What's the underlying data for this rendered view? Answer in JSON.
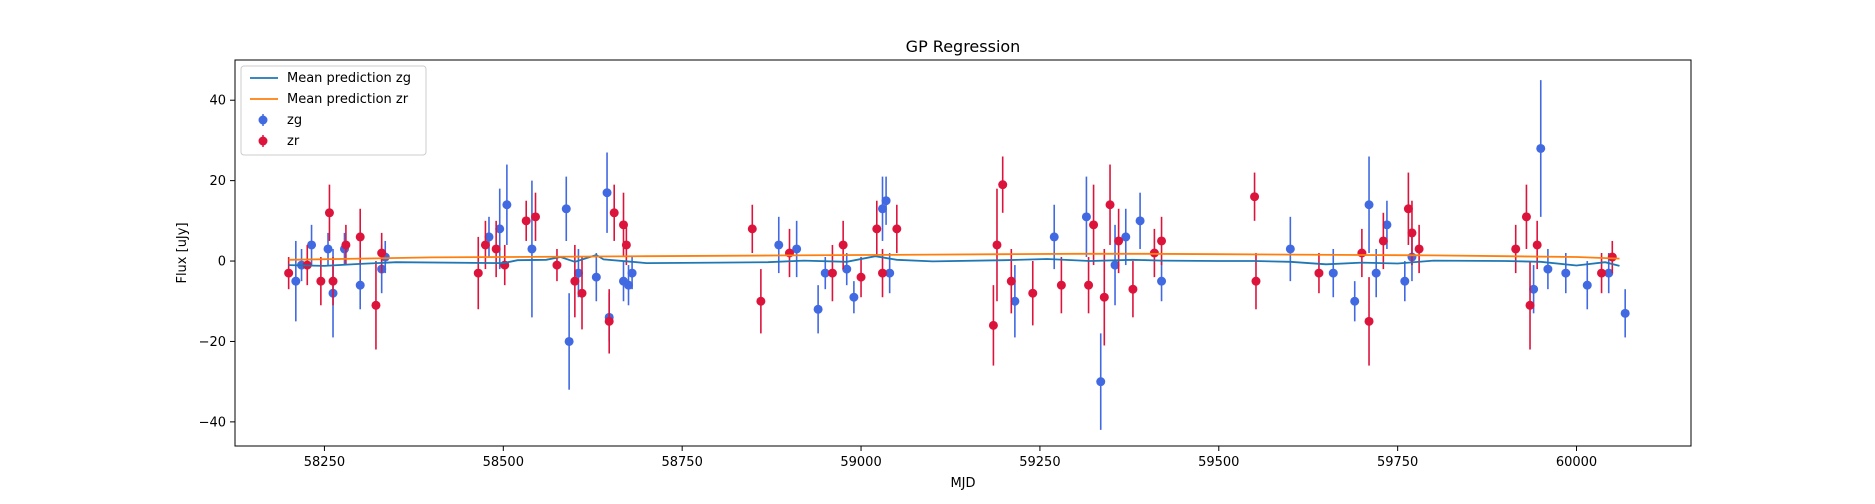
{
  "chart_data": {
    "type": "scatter",
    "title": "GP Regression",
    "xlabel": "MJD",
    "ylabel": "Flux [uJy]",
    "xlim": [
      58125,
      60160
    ],
    "ylim": [
      -46,
      50
    ],
    "x_ticks": [
      58250,
      58500,
      58750,
      59000,
      59250,
      59500,
      59750,
      60000
    ],
    "y_ticks": [
      -40,
      -20,
      0,
      20,
      40
    ],
    "grid": false,
    "legend": "top-left",
    "series": [
      {
        "name": "Mean prediction zg",
        "kind": "line",
        "color": "#1f77b4",
        "points": [
          [
            58200,
            -1
          ],
          [
            58250,
            -1.2
          ],
          [
            58300,
            -0.7
          ],
          [
            58350,
            -0.3
          ],
          [
            58500,
            -0.5
          ],
          [
            58520,
            0.2
          ],
          [
            58560,
            0.3
          ],
          [
            58580,
            1.0
          ],
          [
            58600,
            -0.2
          ],
          [
            58630,
            1.5
          ],
          [
            58640,
            0.4
          ],
          [
            58680,
            -0.2
          ],
          [
            58700,
            -0.5
          ],
          [
            58800,
            -0.4
          ],
          [
            58870,
            -0.3
          ],
          [
            58920,
            0.1
          ],
          [
            58980,
            -0.2
          ],
          [
            59020,
            1.2
          ],
          [
            59050,
            0.3
          ],
          [
            59100,
            -0.1
          ],
          [
            59200,
            0.2
          ],
          [
            59260,
            0.5
          ],
          [
            59320,
            0
          ],
          [
            59380,
            0.3
          ],
          [
            59420,
            0.1
          ],
          [
            59500,
            0
          ],
          [
            59550,
            0
          ],
          [
            59600,
            -0.2
          ],
          [
            59650,
            -0.8
          ],
          [
            59700,
            -0.4
          ],
          [
            59750,
            -0.6
          ],
          [
            59800,
            0.1
          ],
          [
            59900,
            0
          ],
          [
            59950,
            -0.2
          ],
          [
            60000,
            -1.1
          ],
          [
            60040,
            -0.3
          ],
          [
            60060,
            -1.2
          ]
        ]
      },
      {
        "name": "Mean prediction zr",
        "kind": "line",
        "color": "#ff7f0e",
        "points": [
          [
            58200,
            0.3
          ],
          [
            58300,
            0.6
          ],
          [
            58400,
            0.9
          ],
          [
            58500,
            1.0
          ],
          [
            58600,
            1.1
          ],
          [
            58700,
            1.2
          ],
          [
            58800,
            1.3
          ],
          [
            58900,
            1.4
          ],
          [
            59000,
            1.5
          ],
          [
            59100,
            1.6
          ],
          [
            59200,
            1.7
          ],
          [
            59300,
            1.8
          ],
          [
            59400,
            1.8
          ],
          [
            59500,
            1.7
          ],
          [
            59600,
            1.6
          ],
          [
            59700,
            1.5
          ],
          [
            59800,
            1.4
          ],
          [
            59900,
            1.2
          ],
          [
            60000,
            1.0
          ],
          [
            60060,
            0.6
          ]
        ]
      },
      {
        "name": "zg",
        "kind": "errorbar",
        "color": "#4169e1",
        "points": [
          [
            58210,
            -5,
            10
          ],
          [
            58218,
            -1,
            4
          ],
          [
            58232,
            4,
            5
          ],
          [
            58255,
            3,
            4
          ],
          [
            58262,
            -8,
            11
          ],
          [
            58278,
            3,
            4
          ],
          [
            58300,
            -6,
            6
          ],
          [
            58330,
            -2,
            6
          ],
          [
            58335,
            1,
            4
          ],
          [
            58480,
            6,
            5
          ],
          [
            58495,
            8,
            10
          ],
          [
            58505,
            14,
            10
          ],
          [
            58540,
            3,
            17
          ],
          [
            58588,
            13,
            8
          ],
          [
            58592,
            -20,
            12
          ],
          [
            58605,
            -3,
            6
          ],
          [
            58630,
            -4,
            6
          ],
          [
            58645,
            17,
            10
          ],
          [
            58648,
            -14,
            6
          ],
          [
            58668,
            -5,
            5
          ],
          [
            58675,
            -6,
            5
          ],
          [
            58680,
            -3,
            4
          ],
          [
            58885,
            4,
            7
          ],
          [
            58910,
            3,
            7
          ],
          [
            58940,
            -12,
            6
          ],
          [
            58950,
            -3,
            4
          ],
          [
            58980,
            -2,
            4
          ],
          [
            58990,
            -9,
            4
          ],
          [
            59030,
            13,
            8
          ],
          [
            59035,
            15,
            6
          ],
          [
            59040,
            -3,
            5
          ],
          [
            59215,
            -10,
            9
          ],
          [
            59270,
            6,
            8
          ],
          [
            59315,
            11,
            10
          ],
          [
            59335,
            -30,
            12
          ],
          [
            59355,
            -1,
            10
          ],
          [
            59370,
            6,
            7
          ],
          [
            59390,
            10,
            7
          ],
          [
            59420,
            -5,
            5
          ],
          [
            59600,
            3,
            8
          ],
          [
            59660,
            -3,
            6
          ],
          [
            59690,
            -10,
            5
          ],
          [
            59710,
            14,
            12
          ],
          [
            59720,
            -3,
            6
          ],
          [
            59735,
            9,
            6
          ],
          [
            59760,
            -5,
            5
          ],
          [
            59770,
            1,
            6
          ],
          [
            59950,
            28,
            17
          ],
          [
            59940,
            -7,
            6
          ],
          [
            59960,
            -2,
            5
          ],
          [
            59985,
            -3,
            5
          ],
          [
            60015,
            -6,
            6
          ],
          [
            60045,
            -3,
            5
          ],
          [
            60068,
            -13,
            6
          ]
        ]
      },
      {
        "name": "zr",
        "kind": "errorbar",
        "color": "#dc143c",
        "points": [
          [
            58200,
            -3,
            4
          ],
          [
            58226,
            -1,
            5
          ],
          [
            58245,
            -5,
            6
          ],
          [
            58257,
            12,
            7
          ],
          [
            58262,
            -5,
            6
          ],
          [
            58280,
            4,
            5
          ],
          [
            58300,
            6,
            7
          ],
          [
            58322,
            -11,
            11
          ],
          [
            58330,
            2,
            5
          ],
          [
            58465,
            -3,
            9
          ],
          [
            58475,
            4,
            6
          ],
          [
            58490,
            3,
            7
          ],
          [
            58502,
            -1,
            5
          ],
          [
            58532,
            10,
            5
          ],
          [
            58545,
            11,
            6
          ],
          [
            58575,
            -1,
            4
          ],
          [
            58600,
            -5,
            9
          ],
          [
            58610,
            -8,
            9
          ],
          [
            58648,
            -15,
            8
          ],
          [
            58655,
            12,
            7
          ],
          [
            58668,
            9,
            8
          ],
          [
            58672,
            4,
            5
          ],
          [
            58848,
            8,
            6
          ],
          [
            58860,
            -10,
            8
          ],
          [
            58900,
            2,
            6
          ],
          [
            58960,
            -3,
            7
          ],
          [
            58975,
            4,
            6
          ],
          [
            59000,
            -4,
            5
          ],
          [
            59022,
            8,
            7
          ],
          [
            59030,
            -3,
            6
          ],
          [
            59050,
            8,
            6
          ],
          [
            59185,
            -16,
            10
          ],
          [
            59190,
            4,
            14
          ],
          [
            59198,
            19,
            7
          ],
          [
            59210,
            -5,
            8
          ],
          [
            59240,
            -8,
            8
          ],
          [
            59280,
            -6,
            7
          ],
          [
            59318,
            -6,
            7
          ],
          [
            59325,
            9,
            10
          ],
          [
            59340,
            -9,
            12
          ],
          [
            59348,
            14,
            10
          ],
          [
            59360,
            5,
            8
          ],
          [
            59380,
            -7,
            7
          ],
          [
            59410,
            2,
            6
          ],
          [
            59420,
            5,
            6
          ],
          [
            59550,
            16,
            6
          ],
          [
            59552,
            -5,
            7
          ],
          [
            59640,
            -3,
            5
          ],
          [
            59700,
            2,
            6
          ],
          [
            59710,
            -15,
            11
          ],
          [
            59730,
            5,
            7
          ],
          [
            59765,
            13,
            9
          ],
          [
            59770,
            7,
            8
          ],
          [
            59780,
            3,
            6
          ],
          [
            59915,
            3,
            6
          ],
          [
            59930,
            11,
            8
          ],
          [
            59935,
            -11,
            11
          ],
          [
            59945,
            4,
            6
          ],
          [
            60035,
            -3,
            5
          ],
          [
            60050,
            1,
            4
          ]
        ]
      }
    ]
  }
}
